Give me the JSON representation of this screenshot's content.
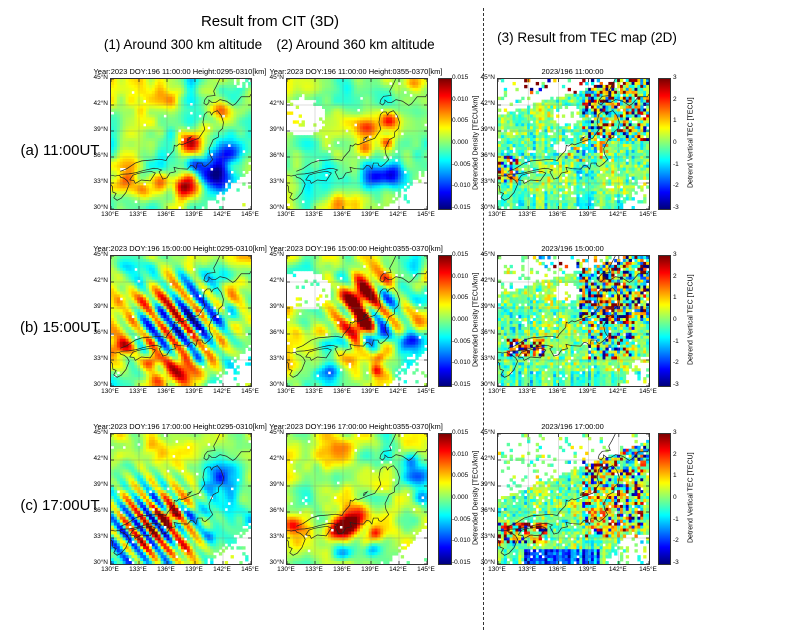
{
  "header": {
    "cit_title": "Result from CIT (3D)",
    "col1_title": "(1) Around 300 km altitude",
    "col2_title": "(2) Around 360 km altitude",
    "col3_title": "(3) Result from TEC map (2D)"
  },
  "rows": [
    {
      "label": "(a) 11:00UT"
    },
    {
      "label": "(b) 15:00UT"
    },
    {
      "label": "(c) 17:00UT"
    }
  ],
  "map": {
    "lon_range": [
      130,
      145
    ],
    "lat_range": [
      30,
      45
    ],
    "x_tick_labels": [
      "130°E",
      "133°E",
      "136°E",
      "139°E",
      "142°E",
      "145°E"
    ],
    "x_tick_values": [
      130,
      133,
      136,
      139,
      142,
      145
    ],
    "y_tick_labels": [
      "30°N",
      "33°N",
      "36°N",
      "39°N",
      "42°N",
      "45°N"
    ],
    "y_tick_values": [
      30,
      33,
      36,
      39,
      42,
      45
    ],
    "grid": true
  },
  "colorbars": {
    "cit": {
      "label": "Detrended Density [TECU/km]",
      "tick_labels": [
        "0.015",
        "0.010",
        "0.005",
        "0.000",
        "-0.005",
        "-0.010",
        "-0.015"
      ],
      "vmin": -0.015,
      "vmax": 0.015,
      "colormap": "jet"
    },
    "tec": {
      "label": "Detrend Vertical TEC [TECU]",
      "tick_labels": [
        "3",
        "2",
        "1",
        "0",
        "-1",
        "-2",
        "-3"
      ],
      "vmin": -3,
      "vmax": 3,
      "colormap": "jet"
    }
  },
  "chart_data": [
    {
      "id": "a1",
      "type": "heatmap",
      "kind": "cit",
      "row": 0,
      "col": "cit1",
      "seed": 11,
      "title": "Year:2023 DOY:196 11:00:00 Height:0295-0310[km]",
      "bg": 0.0005,
      "smooth": 0.0045,
      "wave": null,
      "se": [
        140.2,
        1.0
      ],
      "holes": [
        [
          44.8,
          144.2,
          0.8,
          1.3,
          0.3
        ]
      ],
      "features": [
        [
          37.6,
          138.6,
          1.3,
          0.012
        ],
        [
          39.3,
          140.3,
          1.0,
          0.007
        ],
        [
          41.4,
          141.9,
          1.2,
          0.008
        ],
        [
          34.3,
          141.3,
          1.7,
          -0.016
        ],
        [
          35.1,
          138.9,
          1.0,
          -0.01
        ],
        [
          36.3,
          142.8,
          1.3,
          -0.009
        ],
        [
          32.6,
          137.9,
          1.5,
          0.011
        ],
        [
          33.1,
          135.3,
          1.1,
          0.008
        ],
        [
          31.9,
          133.8,
          1.2,
          0.007
        ],
        [
          33.4,
          131.5,
          0.9,
          0.006
        ],
        [
          43.9,
          134.9,
          2.0,
          0.003
        ]
      ]
    },
    {
      "id": "a2",
      "type": "heatmap",
      "kind": "cit",
      "row": 0,
      "col": "cit2",
      "seed": 12,
      "title": "Year:2023 DOY:196 11:00:00 Height:0355-0370[km]",
      "bg": 0.001,
      "smooth": 0.0035,
      "wave": null,
      "se": [
        140.6,
        1.0
      ],
      "holes": [
        [
          40.6,
          131.6,
          2.2,
          2.6,
          0.15
        ]
      ],
      "features": [
        [
          39.2,
          138.6,
          1.1,
          0.009
        ],
        [
          40.2,
          141.0,
          1.0,
          0.008
        ],
        [
          37.1,
          138.3,
          0.9,
          0.007
        ],
        [
          37.7,
          140.7,
          0.7,
          0.006
        ],
        [
          33.9,
          141.2,
          1.4,
          -0.013
        ],
        [
          33.6,
          139.0,
          1.2,
          -0.008
        ],
        [
          33.0,
          134.0,
          2.2,
          -0.005
        ],
        [
          44.6,
          143.4,
          1.0,
          0.008
        ],
        [
          30.9,
          136.0,
          1.5,
          0.006
        ]
      ]
    },
    {
      "id": "a3",
      "type": "heatmap",
      "kind": "tec",
      "row": 0,
      "col": "tec",
      "seed": 13,
      "title": "2023/196 11:00:00",
      "wedge": [
        40.8,
        0.35,
        0.18
      ],
      "se2": [
        142.2,
        0.55,
        0.3
      ],
      "holes": [
        [
          40.8,
          136.8,
          1.3,
          1.3,
          0.2
        ],
        [
          37.0,
          136.4,
          0.7,
          0.9,
          0.3
        ]
      ],
      "zones": [
        {
          "la": 43.3,
          "lb": 45,
          "oa": 132,
          "ob": 145,
          "a": 2.0,
          "b": 0
        },
        {
          "la": 38,
          "lb": 45,
          "oa": 138.5,
          "ob": 145,
          "a": 1.9,
          "b": 0
        },
        {
          "la": 33,
          "lb": 36,
          "oa": 130,
          "ob": 132,
          "a": 1.6,
          "b": 0.5
        },
        {
          "la": 35.5,
          "lb": 38,
          "oa": 136.5,
          "ob": 141,
          "a": 0.9,
          "b": 0
        },
        {
          "la": 30,
          "lb": 31.8,
          "oa": 130,
          "ob": 145,
          "a": 0.25,
          "b": -0.3
        }
      ]
    },
    {
      "id": "b1",
      "type": "heatmap",
      "kind": "cit",
      "row": 1,
      "col": "cit1",
      "seed": 21,
      "title": "Year:2023 DOY:196 15:00:00 Height:0295-0310[km]",
      "bg": 0.001,
      "smooth": 0.005,
      "wave": {
        "clat": 37.3,
        "clon": 137.3,
        "r": 4.8,
        "wl": 2.1,
        "amp": 0.014,
        "ph": 0.8
      },
      "se": [
        140.8,
        1.0
      ],
      "holes": [],
      "features": [
        [
          31.9,
          137.9,
          1.5,
          0.013
        ],
        [
          33.0,
          134.4,
          0.9,
          0.01
        ],
        [
          34.4,
          131.4,
          0.9,
          0.009
        ],
        [
          38.4,
          142.6,
          1.2,
          -0.009
        ],
        [
          41.8,
          143.8,
          0.9,
          0.007
        ],
        [
          30.8,
          135.0,
          1.0,
          0.006
        ],
        [
          33.2,
          139.2,
          0.8,
          -0.006
        ]
      ]
    },
    {
      "id": "b2",
      "type": "heatmap",
      "kind": "cit",
      "row": 1,
      "col": "cit2",
      "seed": 22,
      "title": "Year:2023 DOY:196 15:00:00 Height:0355-0370[km]",
      "bg": 0.001,
      "smooth": 0.005,
      "wave": {
        "clat": 38.5,
        "clon": 138.5,
        "r": 4.2,
        "wl": 2.3,
        "amp": 0.01,
        "ph": 2.0
      },
      "se": [
        140.8,
        1.0
      ],
      "holes": [
        [
          41.0,
          131.8,
          2.3,
          3.0,
          0.15
        ]
      ],
      "features": [
        [
          40.3,
          137.6,
          1.6,
          0.013
        ],
        [
          36.7,
          138.0,
          1.3,
          0.014
        ],
        [
          35.8,
          140.0,
          1.1,
          -0.013
        ],
        [
          35.3,
          143.2,
          1.1,
          -0.009
        ],
        [
          34.8,
          134.6,
          1.1,
          -0.008
        ],
        [
          31.6,
          134.6,
          1.1,
          -0.01
        ],
        [
          33.4,
          139.9,
          0.7,
          0.009
        ],
        [
          31.8,
          139.6,
          0.7,
          0.008
        ],
        [
          43.2,
          143.5,
          1.6,
          -0.005
        ],
        [
          33.2,
          136.8,
          1.2,
          0.007
        ]
      ]
    },
    {
      "id": "b3",
      "type": "heatmap",
      "kind": "tec",
      "row": 1,
      "col": "tec",
      "seed": 23,
      "title": "2023/196 15:00:00",
      "wedge": [
        40.5,
        0.35,
        0.2
      ],
      "se2": [
        142.0,
        0.55,
        0.3
      ],
      "holes": [
        [
          40.8,
          136.8,
          1.2,
          1.2,
          0.25
        ]
      ],
      "zones": [
        {
          "la": 37,
          "lb": 45,
          "oa": 138,
          "ob": 145,
          "a": 2.5,
          "b": 0
        },
        {
          "la": 43.5,
          "lb": 45,
          "oa": 133,
          "ob": 145,
          "a": 2.2,
          "b": 0
        },
        {
          "la": 33,
          "lb": 37,
          "oa": 139,
          "ob": 143.5,
          "a": 1.7,
          "b": 0
        },
        {
          "la": 33.5,
          "lb": 35.5,
          "oa": 131,
          "ob": 134.5,
          "a": 2.0,
          "b": 0.6
        },
        {
          "la": 30,
          "lb": 31.8,
          "oa": 130,
          "ob": 145,
          "a": 0.25,
          "b": -0.3
        }
      ]
    },
    {
      "id": "c1",
      "type": "heatmap",
      "kind": "cit",
      "row": 2,
      "col": "cit1",
      "seed": 31,
      "title": "Year:2023 DOY:196 17:00:00 Height:0295-0310[km]",
      "bg": -0.001,
      "smooth": 0.0045,
      "wave": {
        "clat": 34.3,
        "clon": 134.3,
        "r": 4.6,
        "wl": 1.7,
        "amp": 0.015,
        "ph": 0.3
      },
      "se": [
        140.5,
        1.1
      ],
      "holes": [],
      "features": [
        [
          35.6,
          136.4,
          0.9,
          0.013
        ],
        [
          31.9,
          137.3,
          1.4,
          0.009
        ],
        [
          40.0,
          142.6,
          1.7,
          -0.008
        ],
        [
          35.8,
          138.8,
          1.0,
          -0.008
        ],
        [
          44.6,
          137.0,
          3.0,
          0.006
        ],
        [
          44.8,
          131.5,
          1.2,
          0.007
        ],
        [
          33.1,
          140.7,
          0.9,
          -0.007
        ]
      ]
    },
    {
      "id": "c2",
      "type": "heatmap",
      "kind": "cit",
      "row": 2,
      "col": "cit2",
      "seed": 32,
      "title": "Year:2023 DOY:196 17:00:00 Height:0355-0370[km]",
      "bg": 0.0015,
      "smooth": 0.004,
      "wave": null,
      "se": [
        140.8,
        1.0
      ],
      "holes": [],
      "features": [
        [
          34.0,
          135.6,
          1.5,
          0.015
        ],
        [
          34.6,
          136.9,
          1.0,
          0.012
        ],
        [
          35.9,
          138.0,
          1.2,
          0.01
        ],
        [
          34.4,
          130.7,
          1.0,
          0.01
        ],
        [
          33.6,
          139.4,
          0.8,
          0.009
        ],
        [
          43.4,
          134.5,
          2.2,
          0.006
        ],
        [
          40.1,
          144.2,
          1.4,
          -0.009
        ],
        [
          41.8,
          143.3,
          1.0,
          -0.008
        ],
        [
          37.7,
          144.5,
          0.9,
          -0.007
        ],
        [
          31.7,
          139.3,
          0.9,
          -0.008
        ],
        [
          31.2,
          135.9,
          1.0,
          -0.006
        ]
      ]
    },
    {
      "id": "c3",
      "type": "heatmap",
      "kind": "tec",
      "row": 2,
      "col": "tec",
      "seed": 33,
      "title": "2023/196 17:00:00",
      "wedge": [
        37.5,
        0.45,
        0.15
      ],
      "se2": [
        140.5,
        0.55,
        0.25
      ],
      "holes": [],
      "zones": [
        {
          "la": 33,
          "lb": 43,
          "oa": 138.5,
          "ob": 144.5,
          "a": 1.7,
          "b": 0.3
        },
        {
          "la": 32.3,
          "lb": 34.8,
          "oa": 130,
          "ob": 134.8,
          "a": 2.2,
          "b": 0.9
        },
        {
          "la": 30,
          "lb": 31.8,
          "oa": 132.5,
          "ob": 140,
          "a": 0.7,
          "b": -1.6
        },
        {
          "la": 41,
          "lb": 43.5,
          "oa": 142.5,
          "ob": 145,
          "a": 1.6,
          "b": -0.9
        },
        {
          "la": 34,
          "lb": 36.5,
          "oa": 139,
          "ob": 142.5,
          "a": 1.4,
          "b": 0.5
        }
      ]
    }
  ],
  "geo": {
    "coastlines": {
      "honshu": [
        [
          131.0,
          34.0
        ],
        [
          131.9,
          34.05
        ],
        [
          132.7,
          34.2
        ],
        [
          133.5,
          34.45
        ],
        [
          134.6,
          34.7
        ],
        [
          135.0,
          34.65
        ],
        [
          135.42,
          34.5
        ],
        [
          135.15,
          34.3
        ],
        [
          135.55,
          33.45
        ],
        [
          136.0,
          33.6
        ],
        [
          136.3,
          34.15
        ],
        [
          136.9,
          34.3
        ],
        [
          136.75,
          34.8
        ],
        [
          137.35,
          34.65
        ],
        [
          138.2,
          34.6
        ],
        [
          138.55,
          35.05
        ],
        [
          138.85,
          34.95
        ],
        [
          139.1,
          34.6
        ],
        [
          139.25,
          35.3
        ],
        [
          139.75,
          35.3
        ],
        [
          139.85,
          35.0
        ],
        [
          140.1,
          34.9
        ],
        [
          140.45,
          35.2
        ],
        [
          140.9,
          35.7
        ],
        [
          140.6,
          36.3
        ],
        [
          140.5,
          36.95
        ],
        [
          140.95,
          38.0
        ],
        [
          141.5,
          38.3
        ],
        [
          141.55,
          38.9
        ],
        [
          141.95,
          39.3
        ],
        [
          142.05,
          40.0
        ],
        [
          141.8,
          40.8
        ],
        [
          141.4,
          41.35
        ],
        [
          140.95,
          41.15
        ],
        [
          140.78,
          40.85
        ],
        [
          140.62,
          41.2
        ],
        [
          140.3,
          41.2
        ],
        [
          140.0,
          40.9
        ],
        [
          139.85,
          40.0
        ],
        [
          140.05,
          39.2
        ],
        [
          139.4,
          38.15
        ],
        [
          138.6,
          37.85
        ],
        [
          137.6,
          37.4
        ],
        [
          137.35,
          37.52
        ],
        [
          137.0,
          37.25
        ],
        [
          136.78,
          37.35
        ],
        [
          136.72,
          36.75
        ],
        [
          136.1,
          36.0
        ],
        [
          135.9,
          35.6
        ],
        [
          135.2,
          35.75
        ],
        [
          134.4,
          35.65
        ],
        [
          133.3,
          35.55
        ],
        [
          132.6,
          35.3
        ],
        [
          131.7,
          34.65
        ],
        [
          131.0,
          34.35
        ]
      ],
      "hokkaido": [
        [
          141.65,
          45.0
        ],
        [
          141.3,
          44.2
        ],
        [
          141.0,
          43.6
        ],
        [
          141.15,
          43.1
        ],
        [
          140.35,
          43.0
        ],
        [
          140.05,
          42.6
        ],
        [
          139.95,
          42.2
        ],
        [
          140.25,
          42.0
        ],
        [
          140.5,
          42.3
        ],
        [
          140.48,
          42.58
        ],
        [
          140.8,
          42.3
        ],
        [
          141.2,
          42.28
        ],
        [
          141.68,
          42.62
        ],
        [
          142.35,
          42.45
        ],
        [
          143.05,
          41.95
        ],
        [
          143.35,
          42.15
        ],
        [
          143.95,
          42.95
        ],
        [
          144.85,
          42.95
        ],
        [
          145.0,
          43.25
        ]
      ],
      "kyushu": [
        [
          130.0,
          33.9
        ],
        [
          130.45,
          33.8
        ],
        [
          130.9,
          33.9
        ],
        [
          131.05,
          33.65
        ],
        [
          131.4,
          33.55
        ],
        [
          131.75,
          33.25
        ],
        [
          131.95,
          32.85
        ],
        [
          131.6,
          31.9
        ],
        [
          131.1,
          31.25
        ],
        [
          130.65,
          31.0
        ],
        [
          130.3,
          31.3
        ],
        [
          130.55,
          31.8
        ],
        [
          130.2,
          31.95
        ],
        [
          130.15,
          32.6
        ],
        [
          129.95,
          32.85
        ]
      ],
      "shikoku": [
        [
          132.0,
          33.35
        ],
        [
          132.45,
          33.3
        ],
        [
          132.6,
          32.95
        ],
        [
          133.25,
          33.35
        ],
        [
          134.2,
          33.25
        ],
        [
          134.75,
          34.15
        ],
        [
          134.3,
          34.35
        ],
        [
          133.6,
          34.25
        ],
        [
          132.9,
          34.1
        ],
        [
          132.35,
          33.9
        ],
        [
          132.0,
          33.35
        ]
      ],
      "sado": [
        [
          138.2,
          37.85
        ],
        [
          138.6,
          38.32
        ],
        [
          138.25,
          38.18
        ],
        [
          138.2,
          37.85
        ]
      ]
    }
  }
}
